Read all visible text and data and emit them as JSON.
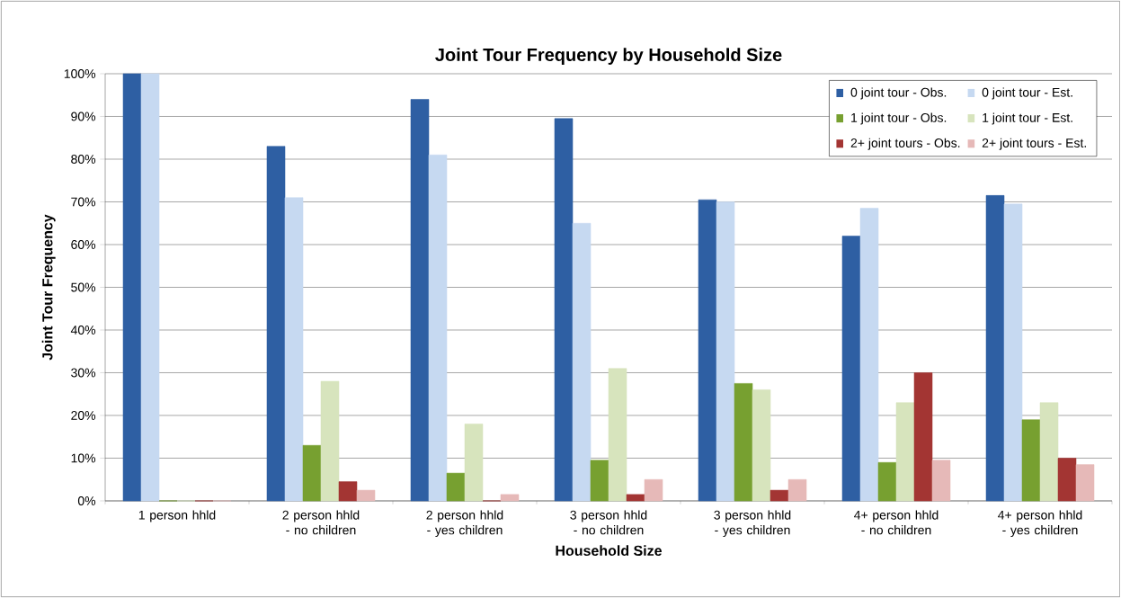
{
  "chart_data": {
    "type": "bar",
    "title": "Joint Tour Frequency by Household Size",
    "xlabel": "Household Size",
    "ylabel": "Joint Tour Frequency",
    "categories": [
      "1 person hhld",
      "2 person hhld - no children",
      "2 person hhld - yes children",
      "3 person hhld - no children",
      "3 person hhld - yes children",
      "4+ person hhld - no children",
      "4+ person hhld - yes children"
    ],
    "series": [
      {
        "name": "0 joint tour - Obs.",
        "color": "#2e5fa3",
        "values": [
          100,
          83,
          94,
          89.5,
          70.5,
          62,
          71.5
        ]
      },
      {
        "name": "0 joint tour - Est.",
        "color": "#c6d9f1",
        "values": [
          100,
          71,
          81,
          65,
          70,
          68.5,
          69.5
        ]
      },
      {
        "name": "1 joint tour - Obs.",
        "color": "#77a030",
        "values": [
          0,
          13,
          6.5,
          9.5,
          27.5,
          9,
          19
        ]
      },
      {
        "name": "1 joint tour - Est.",
        "color": "#d7e4bd",
        "values": [
          0,
          28,
          18,
          31,
          26,
          23,
          23
        ]
      },
      {
        "name": "2+ joint tours - Obs.",
        "color": "#a33533",
        "values": [
          0,
          4.5,
          0,
          1.5,
          2.5,
          30,
          10
        ]
      },
      {
        "name": "2+ joint tours - Est.",
        "color": "#e6b9b8",
        "values": [
          0,
          2.5,
          1.5,
          5,
          5,
          9.5,
          8.5
        ]
      }
    ],
    "ylim": [
      0,
      100
    ],
    "yticks": [
      {
        "value": 0,
        "label": "0%"
      },
      {
        "value": 10,
        "label": "10%"
      },
      {
        "value": 20,
        "label": "20%"
      },
      {
        "value": 30,
        "label": "30%"
      },
      {
        "value": 40,
        "label": "40%"
      },
      {
        "value": 50,
        "label": "50%"
      },
      {
        "value": 60,
        "label": "60%"
      },
      {
        "value": 70,
        "label": "70%"
      },
      {
        "value": 80,
        "label": "80%"
      },
      {
        "value": 90,
        "label": "90%"
      },
      {
        "value": 100,
        "label": "100%"
      }
    ],
    "grid": "y",
    "legend": "top right"
  }
}
